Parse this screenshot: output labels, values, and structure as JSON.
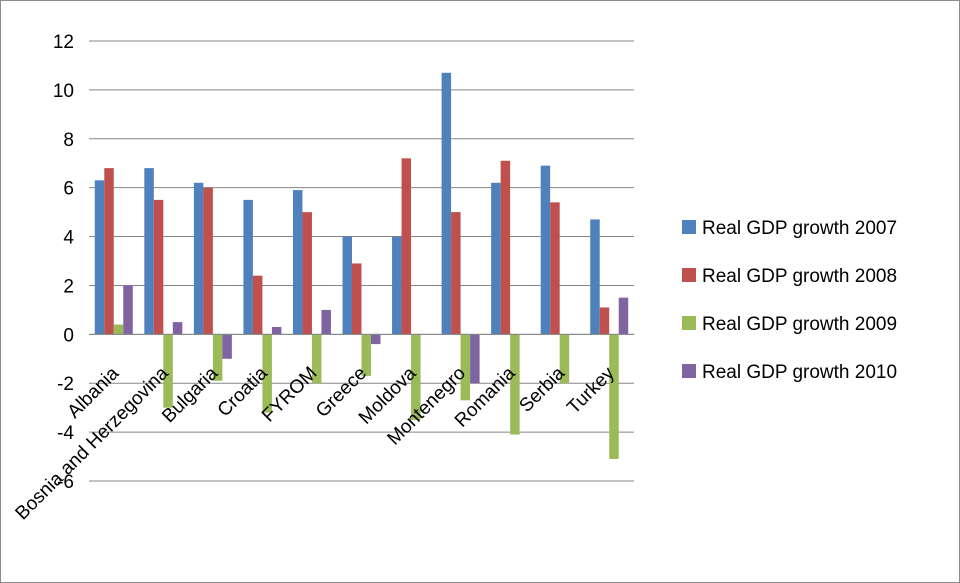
{
  "chart_data": {
    "type": "bar",
    "title": "",
    "xlabel": "",
    "ylabel": "",
    "ylim": [
      -6,
      12
    ],
    "ytick_step": 2,
    "grid": true,
    "legend_position": "right",
    "categories": [
      "Albania",
      "Bosnia and Herzegovina",
      "Bulgaria",
      "Croatia",
      "FYROM",
      "Greece",
      "Moldova",
      "Montenegro",
      "Romania",
      "Serbia",
      "Turkey"
    ],
    "series": [
      {
        "name": "Real GDP growth 2007",
        "color": "#4f81bd",
        "values": [
          6.3,
          6.8,
          6.2,
          5.5,
          5.9,
          4.0,
          4.0,
          10.7,
          6.2,
          6.9,
          4.7
        ]
      },
      {
        "name": "Real GDP growth 2008",
        "color": "#c0504d",
        "values": [
          6.8,
          5.5,
          6.0,
          2.4,
          5.0,
          2.9,
          7.2,
          5.0,
          7.1,
          5.4,
          1.1
        ]
      },
      {
        "name": "Real GDP growth 2009",
        "color": "#9bbb59",
        "values": [
          0.4,
          -3.0,
          -1.9,
          -3.2,
          -2.0,
          -1.7,
          -3.5,
          -2.7,
          -4.1,
          -2.0,
          -5.1
        ]
      },
      {
        "name": "Real GDP growth 2010",
        "color": "#8064a2",
        "values": [
          2.0,
          0.5,
          -1.0,
          0.3,
          1.0,
          -0.4,
          0.0,
          -2.0,
          0.0,
          0.0,
          1.5
        ]
      }
    ]
  }
}
